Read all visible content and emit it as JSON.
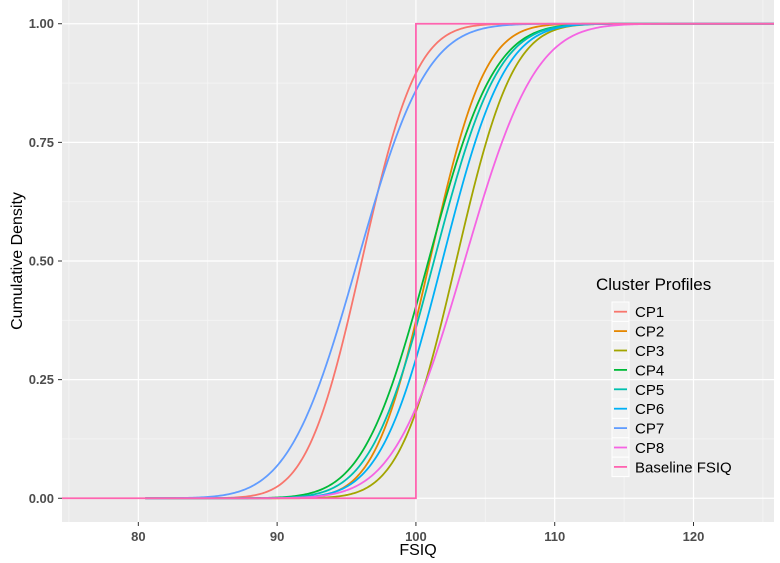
{
  "chart_data": {
    "type": "line",
    "title": "",
    "xlabel": "FSIQ",
    "ylabel": "Cumulative Density",
    "xlim": [
      74.5,
      125.8
    ],
    "ylim": [
      -0.05,
      1.05
    ],
    "x_ticks": [
      80,
      90,
      100,
      110,
      120
    ],
    "x_tick_labels": [
      "80",
      "90",
      "100",
      "110",
      "120"
    ],
    "y_ticks": [
      0,
      0.25,
      0.5,
      0.75,
      1
    ],
    "y_tick_labels": [
      "0.00",
      "0.25",
      "0.50",
      "0.75",
      "1.00"
    ],
    "grid": true,
    "legend": {
      "title": "Cluster Profiles",
      "position": "right"
    },
    "series": [
      {
        "name": "CP1",
        "color": "#F8766D",
        "kind": "normal_cdf",
        "mean": 96.1,
        "sd": 3.1,
        "x_range": [
          80.5,
          125.8
        ]
      },
      {
        "name": "CP2",
        "color": "#E58700",
        "kind": "normal_cdf",
        "mean": 101.0,
        "sd": 3.1,
        "x_range": [
          80.5,
          125.8
        ]
      },
      {
        "name": "CP3",
        "color": "#A3A500",
        "kind": "normal_cdf",
        "mean": 102.9,
        "sd": 3.2,
        "x_range": [
          80.5,
          125.8
        ]
      },
      {
        "name": "CP4",
        "color": "#00BA38",
        "kind": "normal_cdf",
        "mean": 100.9,
        "sd": 3.7,
        "x_range": [
          80.5,
          125.8
        ]
      },
      {
        "name": "CP5",
        "color": "#00C0AF",
        "kind": "normal_cdf",
        "mean": 101.3,
        "sd": 3.6,
        "x_range": [
          80.5,
          125.8
        ]
      },
      {
        "name": "CP6",
        "color": "#00B0F6",
        "kind": "normal_cdf",
        "mean": 101.9,
        "sd": 3.5,
        "x_range": [
          80.5,
          125.8
        ]
      },
      {
        "name": "CP7",
        "color": "#619CFF",
        "kind": "normal_cdf",
        "mean": 95.8,
        "sd": 3.9,
        "x_range": [
          80.5,
          125.8
        ]
      },
      {
        "name": "CP8",
        "color": "#F564E3",
        "kind": "normal_cdf",
        "mean": 103.5,
        "sd": 4.0,
        "x_range": [
          80.5,
          125.8
        ]
      },
      {
        "name": "Baseline FSIQ",
        "color": "#FF64B0",
        "kind": "step",
        "step_at": 100,
        "x_range": [
          74.5,
          125.8
        ]
      }
    ]
  }
}
